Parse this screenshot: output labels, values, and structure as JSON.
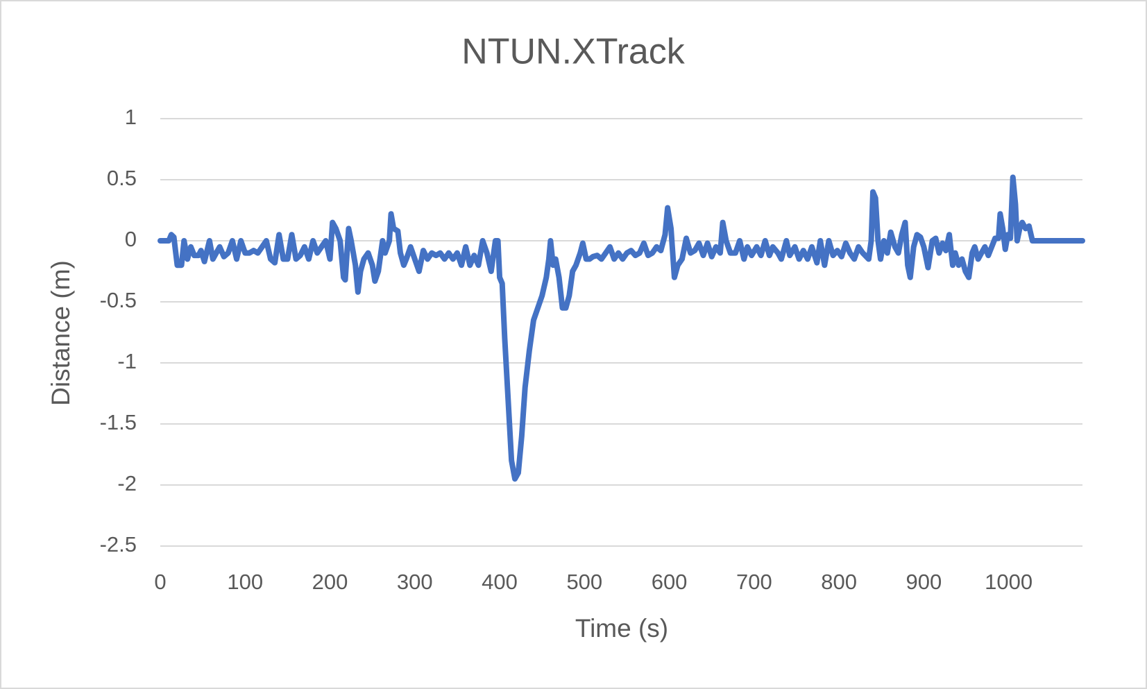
{
  "chart_data": {
    "type": "line",
    "title": "NTUN.XTrack",
    "x_label": "Time (s)",
    "y_label": "Distance (m)",
    "color": "#4472c4",
    "grid": true,
    "xlim": [
      0,
      1087
    ],
    "xticks": [
      0,
      100,
      200,
      300,
      400,
      500,
      600,
      700,
      800,
      900,
      1000
    ],
    "ylim": [
      -2.5,
      1
    ],
    "yticks": [
      1,
      0.5,
      0,
      -0.5,
      -1,
      -1.5,
      -2,
      -2.5
    ],
    "x": [
      0,
      10,
      13,
      16,
      20,
      25,
      28,
      32,
      36,
      40,
      45,
      48,
      52,
      58,
      62,
      66,
      70,
      75,
      80,
      85,
      90,
      95,
      100,
      105,
      110,
      115,
      120,
      125,
      130,
      135,
      140,
      145,
      150,
      155,
      160,
      165,
      170,
      175,
      180,
      185,
      190,
      195,
      200,
      203,
      207,
      212,
      216,
      218,
      222,
      225,
      230,
      233,
      236,
      240,
      245,
      250,
      253,
      257,
      262,
      265,
      270,
      272,
      275,
      280,
      283,
      287,
      290,
      295,
      300,
      305,
      310,
      315,
      320,
      325,
      330,
      335,
      340,
      345,
      350,
      355,
      360,
      365,
      370,
      375,
      380,
      385,
      390,
      395,
      398,
      400,
      403,
      406,
      410,
      414,
      418,
      422,
      426,
      430,
      435,
      440,
      445,
      450,
      455,
      458,
      460,
      463,
      466,
      470,
      474,
      478,
      482,
      486,
      490,
      495,
      498,
      502,
      506,
      510,
      515,
      520,
      525,
      530,
      535,
      540,
      545,
      550,
      555,
      560,
      565,
      570,
      575,
      580,
      585,
      590,
      595,
      598,
      602,
      606,
      610,
      615,
      620,
      625,
      630,
      635,
      640,
      645,
      650,
      655,
      660,
      663,
      667,
      672,
      678,
      683,
      688,
      692,
      697,
      703,
      708,
      713,
      718,
      722,
      728,
      732,
      738,
      742,
      748,
      753,
      758,
      763,
      768,
      774,
      778,
      783,
      788,
      793,
      798,
      803,
      808,
      813,
      818,
      823,
      828,
      835,
      838,
      840,
      843,
      846,
      849,
      853,
      857,
      861,
      866,
      870,
      874,
      878,
      881,
      884,
      888,
      892,
      896,
      900,
      905,
      910,
      914,
      918,
      922,
      926,
      930,
      934,
      937,
      941,
      945,
      949,
      953,
      957,
      960,
      964,
      968,
      972,
      976,
      980,
      984,
      988,
      990,
      993,
      996,
      999,
      1002,
      1005,
      1008,
      1010,
      1013,
      1016,
      1020,
      1024,
      1028,
      1040,
      1087
    ],
    "values": [
      0,
      0,
      0.05,
      0.03,
      -0.2,
      -0.2,
      0,
      -0.15,
      -0.05,
      -0.12,
      -0.12,
      -0.08,
      -0.17,
      0,
      -0.15,
      -0.1,
      -0.05,
      -0.13,
      -0.1,
      0,
      -0.15,
      0,
      -0.1,
      -0.1,
      -0.08,
      -0.1,
      -0.05,
      0,
      -0.15,
      -0.18,
      0.05,
      -0.15,
      -0.15,
      0.05,
      -0.15,
      -0.12,
      -0.05,
      -0.15,
      0,
      -0.1,
      -0.05,
      0,
      -0.15,
      0.15,
      0.1,
      0,
      -0.3,
      -0.32,
      0.1,
      0,
      -0.2,
      -0.42,
      -0.25,
      -0.15,
      -0.1,
      -0.2,
      -0.33,
      -0.25,
      0,
      -0.1,
      0,
      0.22,
      0.1,
      0.08,
      -0.1,
      -0.2,
      -0.15,
      -0.05,
      -0.15,
      -0.25,
      -0.08,
      -0.15,
      -0.1,
      -0.12,
      -0.1,
      -0.15,
      -0.1,
      -0.15,
      -0.1,
      -0.2,
      -0.05,
      -0.2,
      -0.12,
      -0.2,
      0,
      -0.1,
      -0.25,
      0,
      0,
      -0.3,
      -0.35,
      -0.8,
      -1.3,
      -1.8,
      -1.95,
      -1.9,
      -1.6,
      -1.2,
      -0.9,
      -0.65,
      -0.55,
      -0.45,
      -0.3,
      -0.15,
      0,
      -0.2,
      -0.15,
      -0.3,
      -0.55,
      -0.55,
      -0.45,
      -0.25,
      -0.2,
      -0.1,
      -0.02,
      -0.15,
      -0.15,
      -0.13,
      -0.12,
      -0.15,
      -0.1,
      -0.05,
      -0.15,
      -0.1,
      -0.15,
      -0.1,
      -0.08,
      -0.12,
      -0.1,
      -0.02,
      -0.12,
      -0.1,
      -0.05,
      -0.08,
      0.05,
      0.27,
      0.1,
      -0.3,
      -0.2,
      -0.15,
      0.02,
      -0.1,
      -0.08,
      -0.02,
      -0.12,
      -0.02,
      -0.13,
      -0.05,
      -0.1,
      0.15,
      0,
      -0.1,
      -0.1,
      0,
      -0.15,
      -0.05,
      -0.12,
      -0.05,
      -0.12,
      0,
      -0.12,
      -0.05,
      -0.1,
      -0.15,
      0,
      -0.12,
      -0.05,
      -0.15,
      -0.08,
      -0.15,
      -0.05,
      -0.18,
      0,
      -0.2,
      0,
      -0.12,
      -0.08,
      -0.13,
      -0.02,
      -0.1,
      -0.15,
      -0.05,
      -0.1,
      -0.15,
      0,
      0.4,
      0.35,
      0,
      -0.15,
      0,
      -0.1,
      0.07,
      -0.05,
      -0.1,
      0.05,
      0.15,
      -0.2,
      -0.3,
      -0.05,
      0.05,
      0.03,
      -0.05,
      -0.22,
      0,
      0.02,
      -0.1,
      -0.02,
      -0.08,
      0.05,
      -0.2,
      -0.1,
      -0.2,
      -0.15,
      -0.25,
      -0.3,
      -0.1,
      -0.05,
      -0.15,
      -0.1,
      -0.05,
      -0.12,
      -0.05,
      0.02,
      0.02,
      0.22,
      0.1,
      -0.07,
      0.05,
      0.02,
      0.52,
      0.3,
      0,
      0.1,
      0.15,
      0.1,
      0.12,
      0,
      0,
      0
    ]
  }
}
